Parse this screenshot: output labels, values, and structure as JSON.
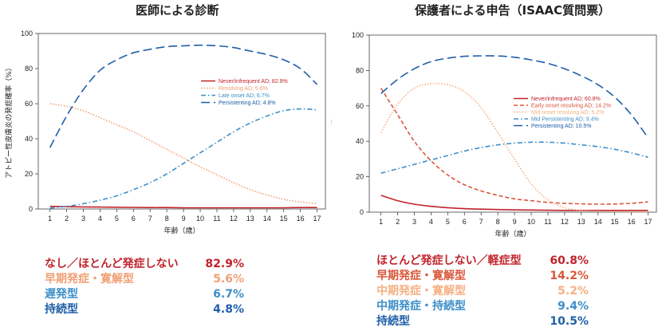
{
  "charts": [
    {
      "title": "医師による診断",
      "ylabel": "アトピー性皮膚炎の発症確率（%）",
      "xlabel": "年齢（歳）",
      "legend": [
        {
          "label": "Never/infrequent AD; 82.9%",
          "color": "#c0242c"
        },
        {
          "label": "Resolving AD; 5.6%",
          "color": "#f0a074"
        },
        {
          "label": "Late onset AD; 6.7%",
          "color": "#3d8fc8"
        },
        {
          "label": "Persistenting AD; 4.8%",
          "color": "#1f5fa8"
        }
      ],
      "summary": [
        {
          "label": "なし／ほとんど発症しない",
          "value": "82.9%",
          "color": "#c0242c"
        },
        {
          "label": "早期発症・寛解型",
          "value": "5.6%",
          "color": "#f0a074"
        },
        {
          "label": "遅発型",
          "value": "6.7%",
          "color": "#3d8fc8"
        },
        {
          "label": "持続型",
          "value": "4.8%",
          "color": "#1f5fa8"
        }
      ]
    },
    {
      "title": "保護者による申告（ISAAC質問票）",
      "ylabel": "",
      "xlabel": "年齢（歳）",
      "legend": [
        {
          "label": "Never/infrequent AD; 60.8%",
          "color": "#c0242c"
        },
        {
          "label": "Early onset resolving AD; 14.2%",
          "color": "#d9573a"
        },
        {
          "label": "Mid onset resolving AD; 5.2%",
          "color": "#f5b083"
        },
        {
          "label": "Mid Persistenting AD; 9.4%",
          "color": "#3d8fc8"
        },
        {
          "label": "Persistenting AD; 10.5%",
          "color": "#1f5fa8"
        }
      ],
      "summary": [
        {
          "label": "ほとんど発症しない／軽症型",
          "value": "60.8%",
          "color": "#c0242c"
        },
        {
          "label": "早期発症・寛解型",
          "value": "14.2%",
          "color": "#d9573a"
        },
        {
          "label": "中期発症・寛解型",
          "value": "5.2%",
          "color": "#f5b083"
        },
        {
          "label": "中期発症・持続型",
          "value": "9.4%",
          "color": "#3d8fc8"
        },
        {
          "label": "持続型",
          "value": "10.5%",
          "color": "#1f5fa8"
        }
      ]
    }
  ],
  "chart_data": [
    {
      "type": "line",
      "title": "医師による診断",
      "xlabel": "年齢（歳）",
      "ylabel": "アトピー性皮膚炎の発症確率（%）",
      "x": [
        1,
        2,
        3,
        4,
        5,
        6,
        7,
        8,
        9,
        10,
        11,
        12,
        13,
        14,
        15,
        16,
        17
      ],
      "xticks": [
        1,
        2,
        3,
        4,
        5,
        6,
        7,
        8,
        9,
        10,
        11,
        12,
        13,
        14,
        15,
        16,
        17
      ],
      "yticks": [
        0,
        20,
        40,
        60,
        80,
        100
      ],
      "ylim": [
        0,
        100
      ],
      "grid": false,
      "legend_position": "top-right",
      "series": [
        {
          "name": "Never/infrequent AD; 82.9%",
          "color": "#c0242c",
          "dash": "solid",
          "values": [
            1.5,
            1.3,
            1.2,
            1.1,
            1.0,
            0.9,
            0.8,
            0.8,
            0.7,
            0.7,
            0.7,
            0.7,
            0.7,
            0.7,
            0.7,
            0.8,
            0.8
          ]
        },
        {
          "name": "Resolving AD; 5.6%",
          "color": "#f0a074",
          "dash": "dotted",
          "values": [
            60,
            58.5,
            56,
            52,
            48,
            44,
            39,
            34,
            29,
            24,
            19.5,
            15,
            11,
            8,
            5.5,
            4,
            3
          ]
        },
        {
          "name": "Late onset AD; 6.7%",
          "color": "#3d8fc8",
          "dash": "dashdot",
          "values": [
            0.5,
            1.5,
            3,
            5,
            7.5,
            11,
            15,
            20,
            26,
            32,
            38,
            44,
            49,
            53,
            56,
            57,
            56.5
          ]
        },
        {
          "name": "Persistenting AD; 4.8%",
          "color": "#1f5fa8",
          "dash": "longdash",
          "values": [
            35,
            53,
            68,
            79,
            85,
            89,
            91,
            92.5,
            93,
            93.3,
            93,
            92,
            90,
            88,
            85,
            80,
            71
          ]
        }
      ]
    },
    {
      "type": "line",
      "title": "保護者による申告（ISAAC質問票）",
      "xlabel": "年齢（歳）",
      "x": [
        1,
        2,
        3,
        4,
        5,
        6,
        7,
        8,
        9,
        10,
        11,
        12,
        13,
        14,
        15,
        16,
        17
      ],
      "xticks": [
        1,
        2,
        3,
        4,
        5,
        6,
        7,
        8,
        9,
        10,
        11,
        12,
        13,
        14,
        15,
        16,
        17
      ],
      "yticks": [
        0,
        20,
        40,
        60,
        80,
        100
      ],
      "ylim": [
        0,
        100
      ],
      "grid": false,
      "legend_position": "right",
      "series": [
        {
          "name": "Never/infrequent AD; 60.8%",
          "color": "#c0242c",
          "dash": "solid",
          "values": [
            9.5,
            6.5,
            4.5,
            3.3,
            2.5,
            2,
            1.7,
            1.5,
            1.3,
            1.2,
            1.1,
            1.0,
            1.0,
            1.0,
            1.0,
            1.0,
            1.0
          ]
        },
        {
          "name": "Early onset resolving AD; 14.2%",
          "color": "#d9573a",
          "dash": "dashed",
          "values": [
            70,
            55,
            40,
            29,
            21,
            15.5,
            12,
            9.5,
            7.5,
            6.5,
            5.5,
            5,
            4.7,
            4.5,
            4.6,
            5,
            5.8
          ]
        },
        {
          "name": "Mid onset resolving AD; 5.2%",
          "color": "#f5b083",
          "dash": "dotted",
          "values": [
            45,
            61,
            70,
            72.5,
            72,
            68,
            59,
            45,
            30,
            16,
            7,
            2.5,
            1,
            0.5,
            0.3,
            0.2,
            0.2
          ]
        },
        {
          "name": "Mid Persistenting AD; 9.4%",
          "color": "#3d8fc8",
          "dash": "dashdot",
          "values": [
            22,
            24.5,
            27,
            29.5,
            32,
            34.5,
            36.5,
            38,
            39,
            39.5,
            39.5,
            39,
            38,
            37,
            35.5,
            33.5,
            31
          ]
        },
        {
          "name": "Persistenting AD; 10.5%",
          "color": "#1f5fa8",
          "dash": "longdash",
          "values": [
            67,
            75,
            81,
            85,
            87,
            88,
            88.3,
            88.2,
            87.5,
            86,
            84,
            81,
            77,
            72,
            65,
            55,
            42
          ]
        }
      ]
    }
  ]
}
